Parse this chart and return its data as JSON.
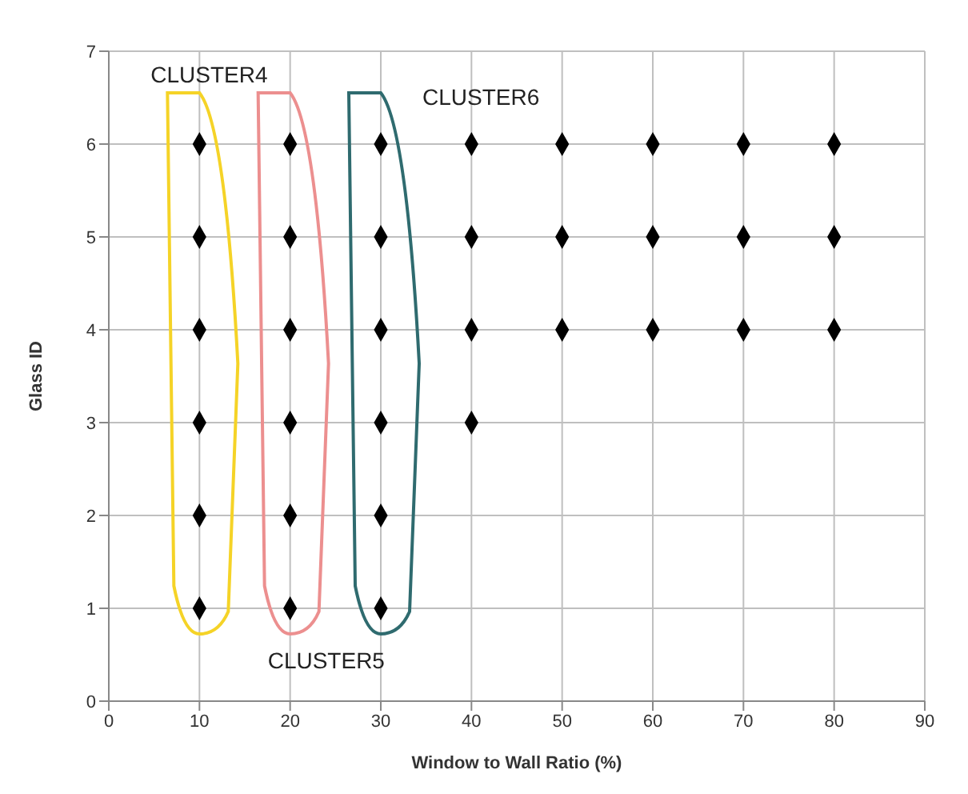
{
  "chart_data": {
    "type": "scatter",
    "xlabel": "Window to Wall Ratio (%)",
    "ylabel": "Glass ID",
    "x": [
      10,
      10,
      10,
      10,
      10,
      10,
      20,
      20,
      20,
      20,
      20,
      20,
      30,
      30,
      30,
      30,
      30,
      30,
      40,
      40,
      40,
      40,
      50,
      50,
      50,
      60,
      60,
      60,
      70,
      70,
      70,
      80,
      80,
      80
    ],
    "series": [
      {
        "color": "#000000",
        "values": [
          1,
          2,
          3,
          4,
          5,
          6,
          1,
          2,
          3,
          4,
          5,
          6,
          1,
          2,
          3,
          4,
          5,
          6,
          3,
          4,
          5,
          6,
          4,
          5,
          6,
          4,
          5,
          6,
          4,
          5,
          6,
          4,
          5,
          6
        ]
      }
    ],
    "xlim": [
      0,
      90
    ],
    "xticks": [
      0,
      10,
      20,
      30,
      40,
      50,
      60,
      70,
      80,
      90
    ],
    "ylim": [
      0,
      7
    ],
    "yticks": [
      0,
      1,
      2,
      3,
      4,
      5,
      6,
      7
    ],
    "grid": true,
    "marker": "diamond",
    "legend": false,
    "annotations": [
      "CLUSTER4",
      "CLUSTER5",
      "CLUSTER6"
    ]
  }
}
